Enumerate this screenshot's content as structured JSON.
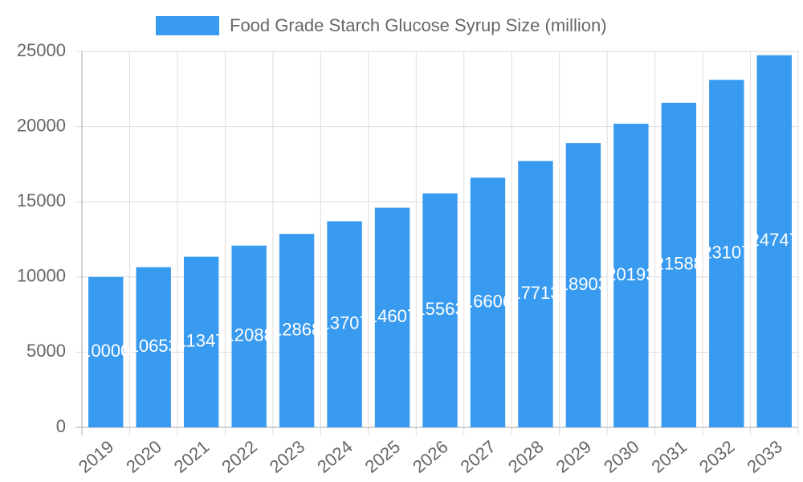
{
  "chart_data": {
    "type": "bar",
    "categories": [
      "2019",
      "2020",
      "2021",
      "2022",
      "2023",
      "2024",
      "2025",
      "2026",
      "2027",
      "2028",
      "2029",
      "2030",
      "2031",
      "2032",
      "2033"
    ],
    "series": [
      {
        "name": "Food Grade Starch Glucose Syrup Size (million)",
        "color": "#389bf0",
        "values": [
          10000,
          10653,
          11347,
          12088,
          12868,
          13707,
          14607,
          15563,
          16606,
          17713,
          18903,
          20193,
          21588,
          23107,
          24747
        ]
      }
    ],
    "ylim": [
      0,
      25000
    ],
    "yticks": [
      0,
      5000,
      10000,
      15000,
      20000,
      25000
    ],
    "grid": true,
    "legend": "top"
  }
}
